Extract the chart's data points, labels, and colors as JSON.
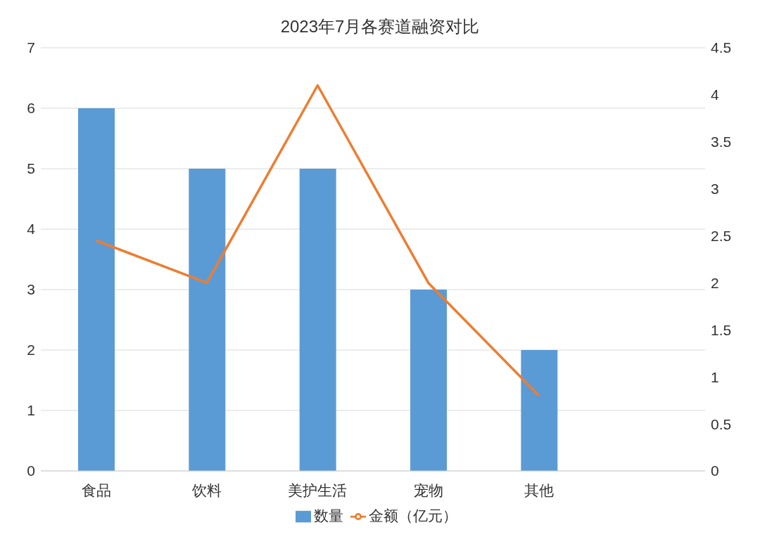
{
  "chart_data": {
    "type": "bar",
    "title": "2023年7月各赛道融资对比",
    "categories": [
      "食品",
      "饮料",
      "美护生活",
      "宠物",
      "其他",
      null
    ],
    "series": [
      {
        "name": "数量",
        "color": "#5b9bd5",
        "values": [
          6,
          5,
          5,
          3,
          2,
          null
        ]
      },
      {
        "name": "金额（亿元）",
        "type": "line",
        "axis": "y2",
        "color": "#ed7d31",
        "values": [
          2.45,
          2.0,
          4.1,
          2.0,
          0.8,
          null
        ]
      }
    ],
    "ylim": [
      0,
      7
    ],
    "yticks": [
      0,
      1,
      2,
      3,
      4,
      5,
      6,
      7
    ],
    "y2lim": [
      0,
      4.5
    ],
    "y2ticks": [
      0,
      0.5,
      1,
      1.5,
      2,
      2.5,
      3,
      3.5,
      4,
      4.5
    ],
    "grid": "y",
    "legend": "bottom",
    "marker": "none",
    "line_style": "solid"
  }
}
